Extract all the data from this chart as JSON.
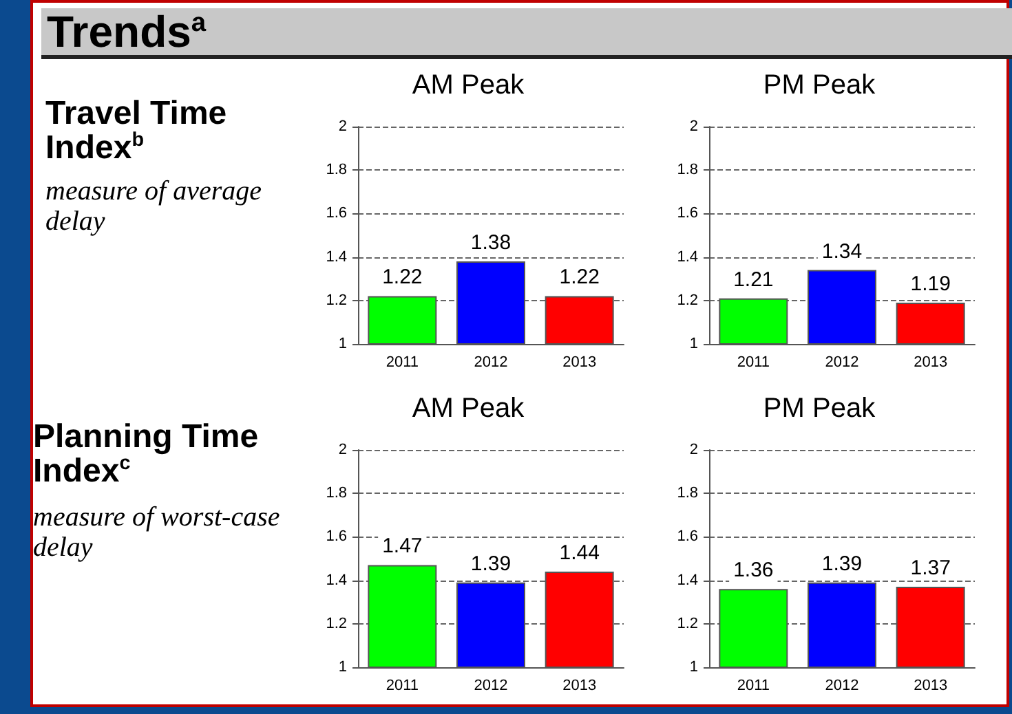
{
  "chart_data": [
    {
      "type": "other",
      "title": "Trends$^{a}$",
      "annotations": [
        "Travel Time Index$^{b}$",
        "measure of average delay",
        "Planning Time Index$^{c}$",
        "measure of worst-case delay"
      ]
    },
    {
      "type": "bar",
      "title": "AM Peak",
      "categories": [
        "2011",
        "2012",
        "2013"
      ],
      "values": [
        1.22,
        1.38,
        1.22
      ],
      "colors": [
        "#00ff00",
        "#0000ff",
        "#ff0000"
      ],
      "ylim": [
        1,
        2
      ],
      "yticks": [
        1,
        1.2,
        1.4,
        1.6,
        1.8,
        2
      ],
      "grid": "y",
      "data_labels": true
    },
    {
      "type": "bar",
      "title": "PM Peak",
      "categories": [
        "2011",
        "2012",
        "2013"
      ],
      "values": [
        1.21,
        1.34,
        1.19
      ],
      "colors": [
        "#00ff00",
        "#0000ff",
        "#ff0000"
      ],
      "ylim": [
        1,
        2
      ],
      "yticks": [
        1,
        1.2,
        1.4,
        1.6,
        1.8,
        2
      ],
      "grid": "y",
      "data_labels": true
    },
    {
      "type": "bar",
      "title": "AM Peak",
      "categories": [
        "2011",
        "2012",
        "2013"
      ],
      "values": [
        1.47,
        1.39,
        1.44
      ],
      "colors": [
        "#00ff00",
        "#0000ff",
        "#ff0000"
      ],
      "ylim": [
        1,
        2
      ],
      "yticks": [
        1,
        1.2,
        1.4,
        1.6,
        1.8,
        2
      ],
      "grid": "y",
      "data_labels": true
    },
    {
      "type": "bar",
      "title": "PM Peak",
      "categories": [
        "2011",
        "2012",
        "2013"
      ],
      "values": [
        1.36,
        1.39,
        1.37
      ],
      "colors": [
        "#00ff00",
        "#0000ff",
        "#ff0000"
      ],
      "ylim": [
        1,
        2
      ],
      "yticks": [
        1,
        1.2,
        1.4,
        1.6,
        1.8,
        2
      ],
      "grid": "y",
      "data_labels": true
    }
  ]
}
